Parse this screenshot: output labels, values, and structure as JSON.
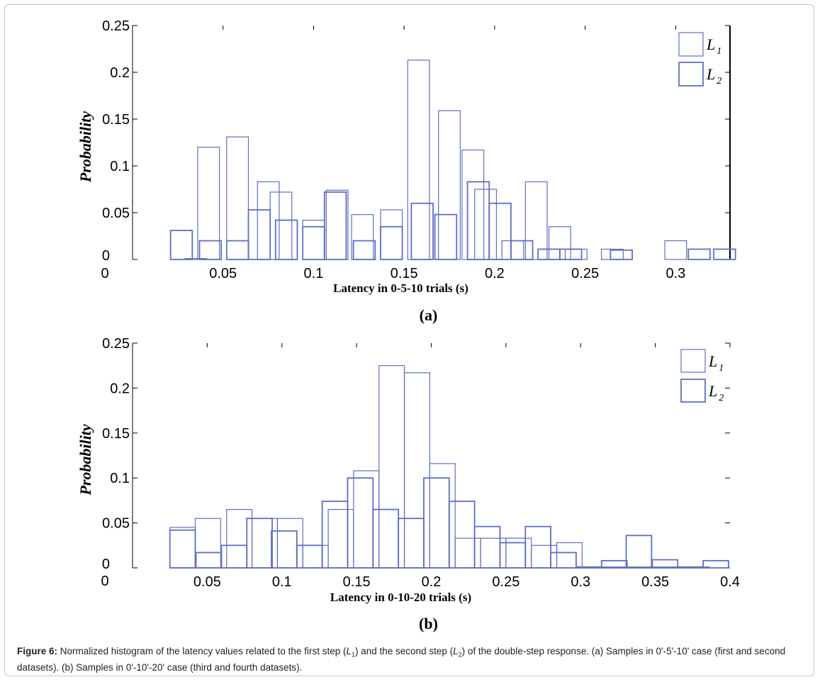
{
  "caption": {
    "label": "Figure 6:",
    "part1": " Normalized histogram of the latency values related to the first step (",
    "l1_base": "L",
    "l1_sub": "1",
    "part2": ") and the second step (",
    "l2_base": "L",
    "l2_sub": "2",
    "part3": ") of the double-step response. (a) Samples in 0'-5'-10' case (first and second datasets). (b) Samples in 0'-10'-20' case (third and fourth datasets)."
  },
  "colors": {
    "bars": "#5d6fc4",
    "axes": "#000000"
  },
  "chart_data": [
    {
      "type": "bar",
      "panel_label": "(a)",
      "xlabel": "Latency in 0-5-10 trials (s)",
      "ylabel": "Probability",
      "xlim": [
        0,
        0.33
      ],
      "ylim": [
        0,
        0.25
      ],
      "xticks": [
        0.05,
        0.1,
        0.15,
        0.2,
        0.25,
        0.3
      ],
      "xtick_labels": [
        "0.05",
        "0.1",
        "0.15",
        "0.2",
        "0.25",
        "0.3"
      ],
      "yticks": [
        0,
        0.05,
        0.1,
        0.15,
        0.2,
        0.25
      ],
      "ytick_labels": [
        "0",
        "0.05",
        "0.1",
        "0.15",
        "0.2",
        "0.25"
      ],
      "origin_label": "0",
      "legend_position": "top-right",
      "bar_width": 0.012,
      "series": [
        {
          "name": "L1",
          "x": [
            0.035,
            0.042,
            0.058,
            0.075,
            0.082,
            0.1,
            0.113,
            0.127,
            0.143,
            0.158,
            0.175,
            0.188,
            0.195,
            0.21,
            0.223,
            0.236,
            0.245,
            0.265,
            0.3
          ],
          "values": [
            0.001,
            0.12,
            0.131,
            0.083,
            0.072,
            0.042,
            0.074,
            0.048,
            0.053,
            0.213,
            0.159,
            0.117,
            0.075,
            0.02,
            0.083,
            0.035,
            0.011,
            0.011,
            0.02
          ]
        },
        {
          "name": "L2",
          "x": [
            0.027,
            0.043,
            0.058,
            0.07,
            0.085,
            0.1,
            0.112,
            0.128,
            0.143,
            0.16,
            0.173,
            0.191,
            0.203,
            0.215,
            0.23,
            0.242,
            0.27,
            0.313,
            0.327
          ],
          "values": [
            0.031,
            0.02,
            0.02,
            0.053,
            0.042,
            0.035,
            0.072,
            0.02,
            0.035,
            0.06,
            0.048,
            0.083,
            0.06,
            0.02,
            0.011,
            0.011,
            0.01,
            0.011,
            0.011
          ]
        }
      ]
    },
    {
      "type": "bar",
      "panel_label": "(b)",
      "xlabel": "Latency in 0-10-20 trials (s)",
      "ylabel": "Probability",
      "xlim": [
        0,
        0.4
      ],
      "ylim": [
        0,
        0.25
      ],
      "xticks": [
        0.05,
        0.1,
        0.15,
        0.2,
        0.25,
        0.3,
        0.35,
        0.4
      ],
      "xtick_labels": [
        "0.05",
        "0.1",
        "0.15",
        "0.2",
        "0.25",
        "0.3",
        "0.35",
        "0.4"
      ],
      "yticks": [
        0,
        0.05,
        0.1,
        0.15,
        0.2,
        0.25
      ],
      "ytick_labels": [
        "0",
        "0.05",
        "0.1",
        "0.15",
        "0.2",
        "0.25"
      ],
      "origin_label": "0",
      "legend_position": "top-right",
      "bar_width": 0.017,
      "series": [
        {
          "name": "L1",
          "x": [
            0.0335,
            0.0505,
            0.0715,
            0.0885,
            0.1055,
            0.1225,
            0.1395,
            0.1565,
            0.1735,
            0.1905,
            0.2075,
            0.2245,
            0.2415,
            0.2585,
            0.2755,
            0.2925,
            0.3095,
            0.3265,
            0.3435,
            0.3605,
            0.3775
          ],
          "values": [
            0.045,
            0.055,
            0.065,
            0.055,
            0.055,
            0.025,
            0.065,
            0.108,
            0.225,
            0.217,
            0.116,
            0.033,
            0.033,
            0.033,
            0.025,
            0.028,
            0.001,
            0.001,
            0.001,
            0.001,
            0.001
          ]
        },
        {
          "name": "L2",
          "x": [
            0.0335,
            0.051,
            0.068,
            0.085,
            0.1015,
            0.1185,
            0.1355,
            0.1525,
            0.1695,
            0.1865,
            0.2035,
            0.2205,
            0.2375,
            0.2545,
            0.2715,
            0.2885,
            0.3055,
            0.3225,
            0.339,
            0.3565,
            0.3735,
            0.3905
          ],
          "values": [
            0.042,
            0.017,
            0.025,
            0.055,
            0.041,
            0.025,
            0.074,
            0.1,
            0.065,
            0.055,
            0.1,
            0.074,
            0.046,
            0.028,
            0.046,
            0.017,
            0.001,
            0.008,
            0.036,
            0.009,
            0.001,
            0.008
          ]
        }
      ]
    }
  ]
}
